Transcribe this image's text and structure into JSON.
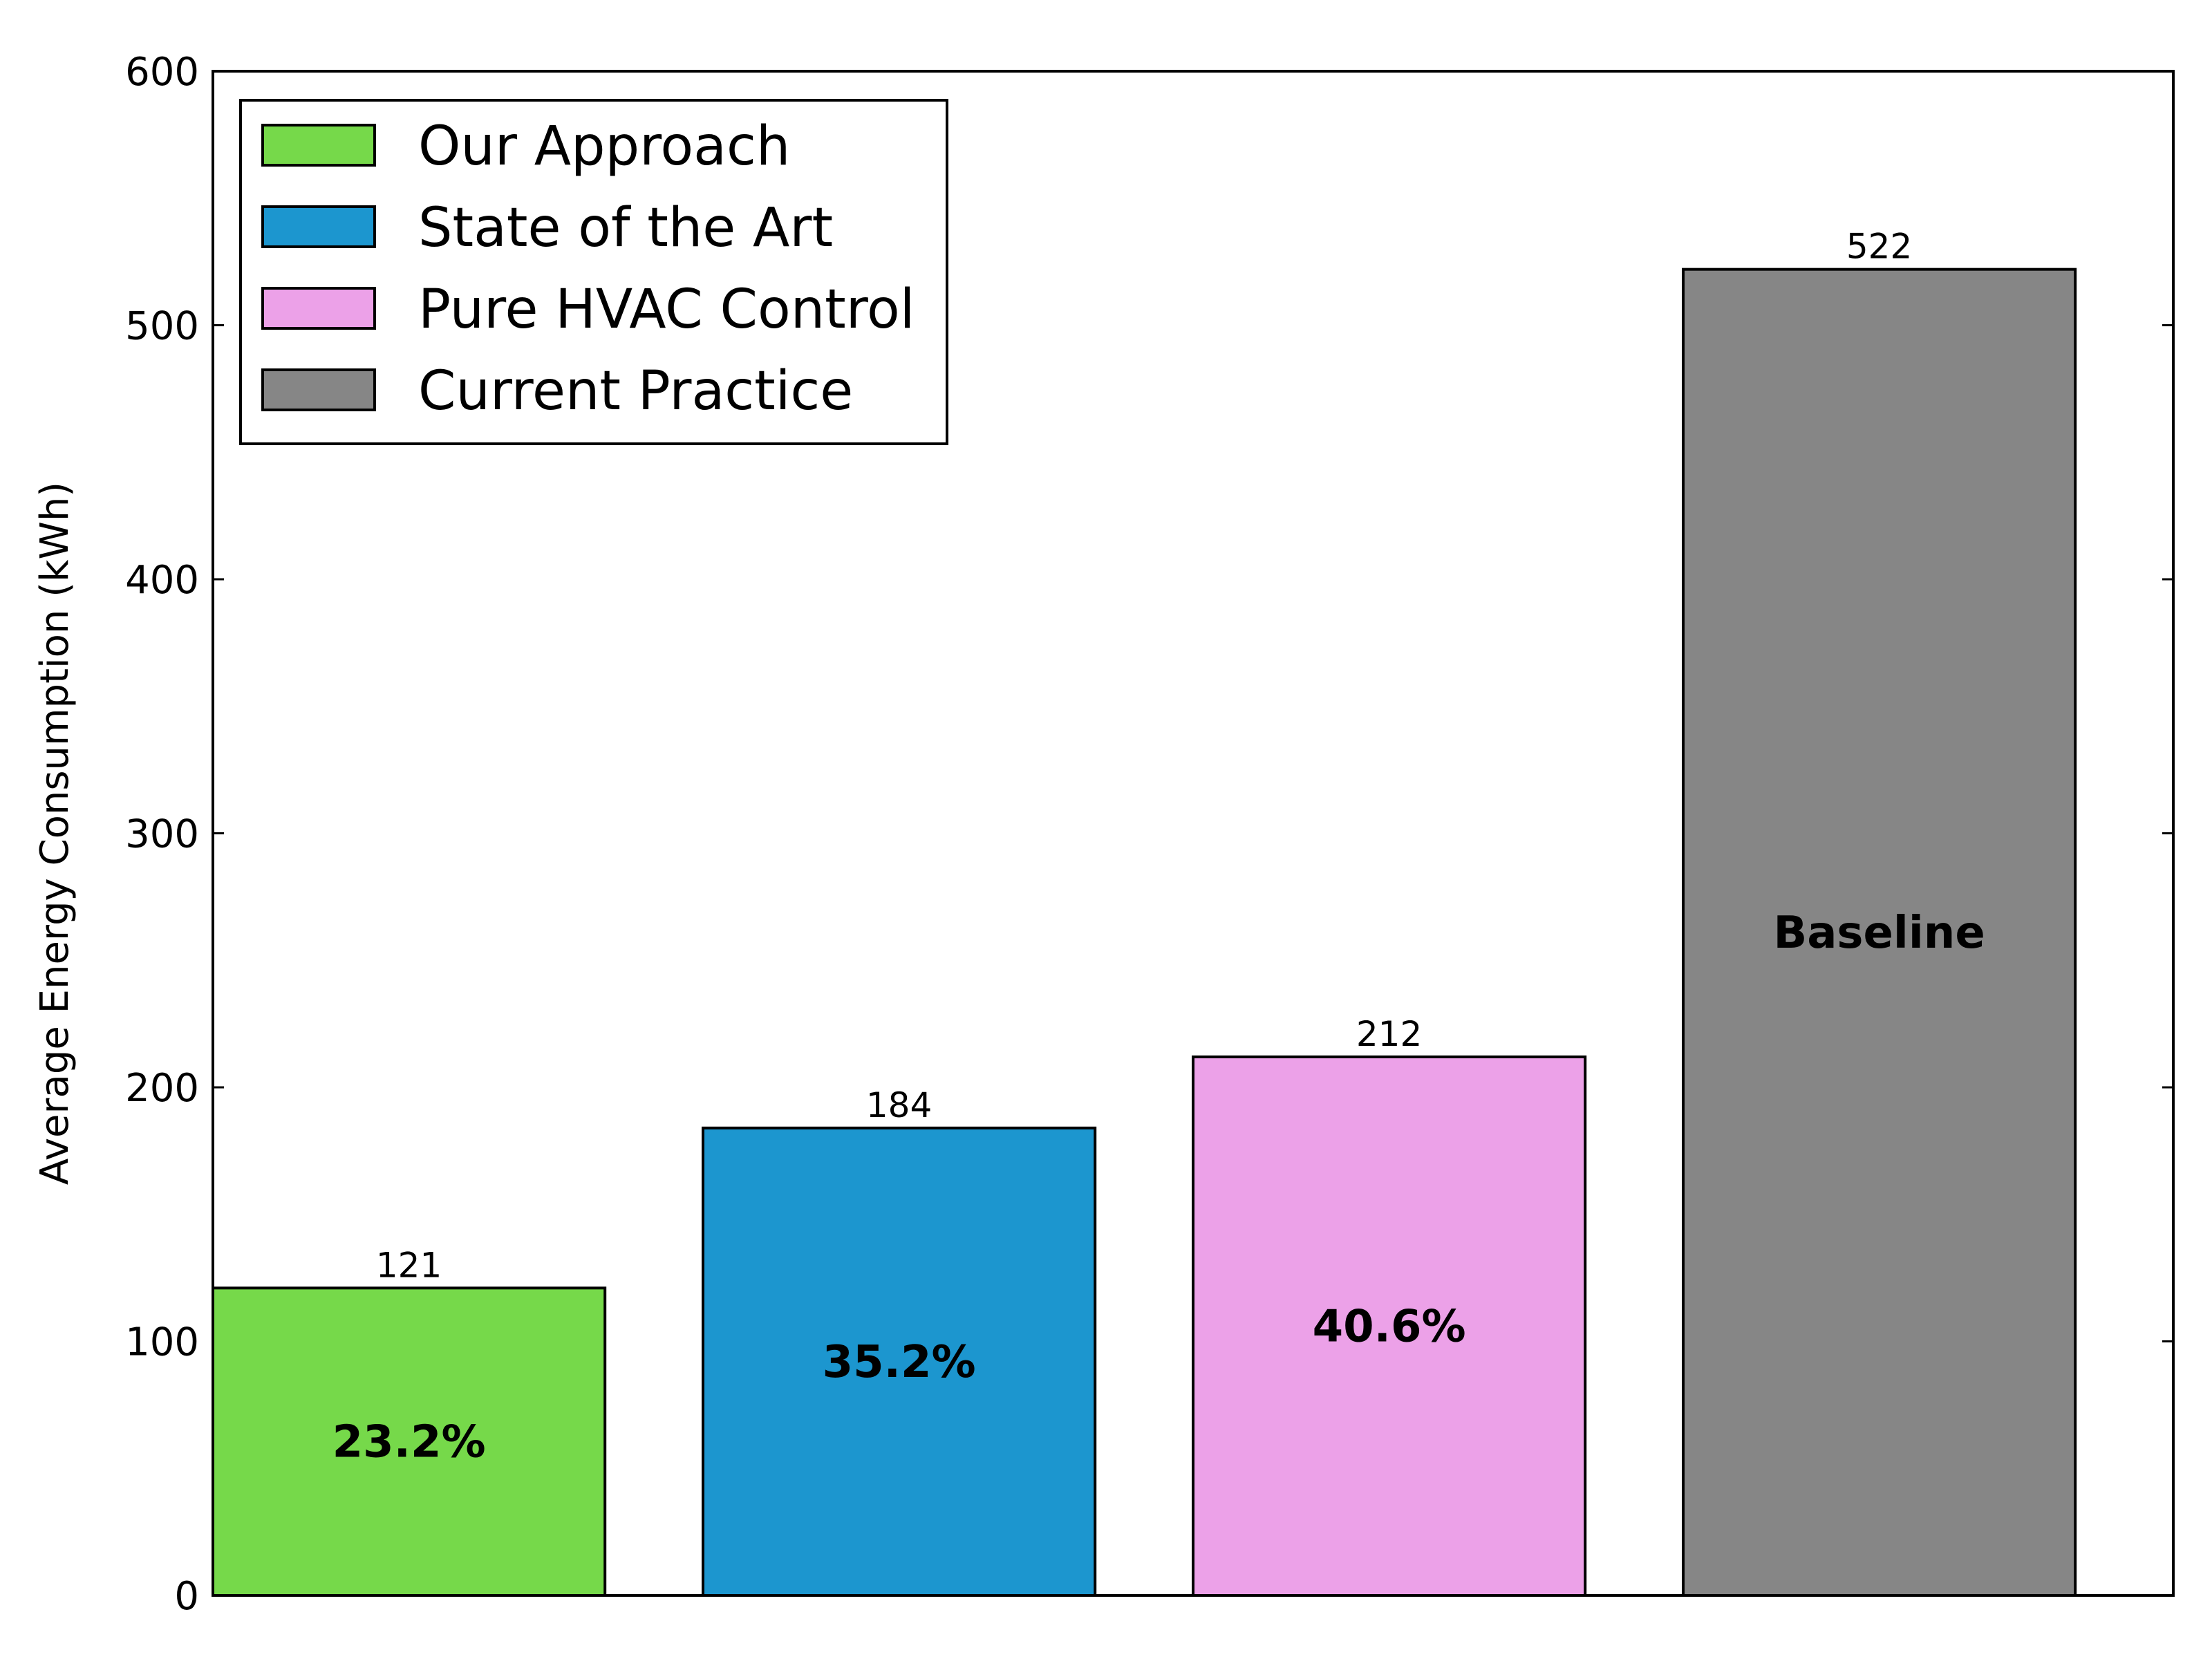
{
  "chart_data": {
    "type": "bar",
    "categories": [
      "Our Approach",
      "State of the Art",
      "Pure HVAC Control",
      "Current Practice"
    ],
    "values": [
      121,
      184,
      212,
      522
    ],
    "value_labels": [
      "121",
      "184",
      "212",
      "522"
    ],
    "inner_labels": [
      "23.2%",
      "35.2%",
      "40.6%",
      "Baseline"
    ],
    "colors": [
      "#76d94a",
      "#1c96cf",
      "#eca1e8",
      "#868686"
    ],
    "xlabel": "",
    "ylabel": "Average Energy Consumption (kWh)",
    "ylim": [
      0,
      600
    ],
    "yticks": [
      0,
      100,
      200,
      300,
      400,
      500,
      600
    ],
    "grid": false,
    "legend": {
      "placement": "top-left",
      "entries": [
        "Our Approach",
        "State of the Art",
        "Pure HVAC Control",
        "Current Practice"
      ]
    }
  }
}
